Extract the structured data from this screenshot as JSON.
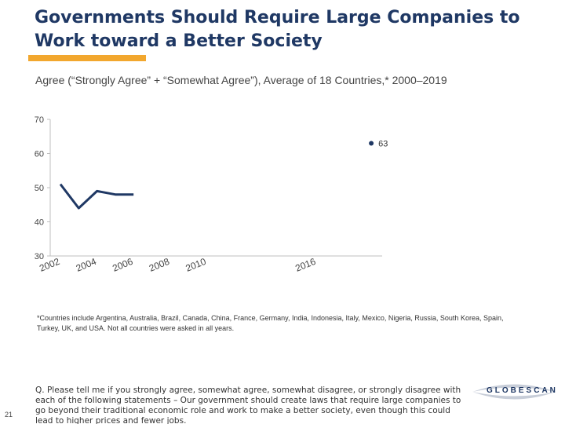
{
  "header": {
    "title": "Governments Should Require Large Companies to Work toward a Better Society",
    "accent_color": "#f2a72e",
    "title_color": "#1f3864"
  },
  "chart_data": {
    "type": "line",
    "title": "Agree (“Strongly Agree” + “Somewhat Agree”), Average of 18 Countries,* 2000–2019",
    "xlabel": "",
    "ylabel": "",
    "ylim": [
      30,
      70
    ],
    "y_ticks": [
      30,
      40,
      50,
      60,
      70
    ],
    "x_ticks": [
      "2002",
      "2004",
      "2006",
      "2008",
      "2010",
      "2016"
    ],
    "series": [
      {
        "name": "Agree",
        "color": "#1f3864",
        "points": [
          {
            "x": 2002,
            "y": 51
          },
          {
            "x": 2003,
            "y": 44
          },
          {
            "x": 2004,
            "y": 49
          },
          {
            "x": 2005,
            "y": 48
          },
          {
            "x": 2006,
            "y": 48
          }
        ]
      }
    ],
    "highlight_point": {
      "x": 2019,
      "y": 63,
      "label": "63"
    },
    "grid": false
  },
  "footnote": "*Countries include Argentina, Australia, Brazil, Canada, China, France, Germany, India, Indonesia, Italy, Mexico, Nigeria, Russia, South Korea, Spain, Turkey, UK, and USA. Not all countries were asked in all years.",
  "question": "Q. Please tell me if you strongly agree, somewhat agree, somewhat disagree, or strongly disagree with each of the following statements – Our government should create laws that require large companies to go beyond their traditional economic role and work to make a better society, even though this could lead to higher prices and fewer jobs.",
  "page_number": "21",
  "logo": {
    "text": "GLOBESCAN"
  }
}
